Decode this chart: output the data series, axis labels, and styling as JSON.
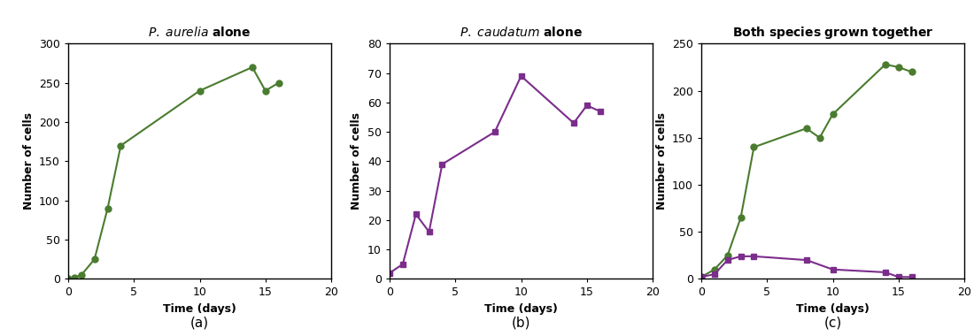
{
  "graph_a": {
    "x": [
      0,
      0.5,
      1,
      2,
      3,
      4,
      10,
      14,
      15,
      16
    ],
    "y": [
      0,
      2,
      5,
      25,
      90,
      170,
      240,
      270,
      240,
      250
    ],
    "color": "#4a7c2f",
    "marker": "o",
    "ylim": [
      0,
      300
    ],
    "yticks": [
      0,
      50,
      100,
      150,
      200,
      250,
      300
    ],
    "xlim": [
      0,
      20
    ],
    "xticks": [
      0,
      5,
      10,
      15,
      20
    ],
    "ylabel": "Number of cells",
    "xlabel": "Time (days)"
  },
  "graph_b": {
    "x": [
      0,
      1,
      2,
      3,
      4,
      8,
      10,
      14,
      15,
      16
    ],
    "y": [
      2,
      5,
      22,
      16,
      39,
      50,
      69,
      53,
      59,
      57
    ],
    "color": "#7b2d8b",
    "marker": "s",
    "ylim": [
      0,
      80
    ],
    "yticks": [
      0,
      10,
      20,
      30,
      40,
      50,
      60,
      70,
      80
    ],
    "xlim": [
      0,
      20
    ],
    "xticks": [
      0,
      5,
      10,
      15,
      20
    ],
    "ylabel": "Number of cells",
    "xlabel": "Time (days)"
  },
  "graph_c": {
    "aurelia_x": [
      0,
      1,
      2,
      3,
      4,
      8,
      9,
      10,
      14,
      15,
      16
    ],
    "aurelia_y": [
      2,
      10,
      25,
      65,
      140,
      160,
      150,
      175,
      228,
      225,
      220
    ],
    "caudatum_x": [
      0,
      1,
      2,
      3,
      4,
      8,
      10,
      14,
      15,
      16
    ],
    "caudatum_y": [
      2,
      5,
      20,
      24,
      24,
      20,
      10,
      7,
      2,
      2
    ],
    "aurelia_color": "#4a7c2f",
    "caudatum_color": "#7b2d8b",
    "aurelia_marker": "o",
    "caudatum_marker": "s",
    "ylim": [
      0,
      250
    ],
    "yticks": [
      0,
      50,
      100,
      150,
      200,
      250
    ],
    "xlim": [
      0,
      20
    ],
    "xticks": [
      0,
      5,
      10,
      15,
      20
    ],
    "ylabel": "Number of cells",
    "xlabel": "Time (days)"
  },
  "label_a": "(a)",
  "label_b": "(b)",
  "label_c": "(c)",
  "background_color": "#ffffff",
  "border_color": "#000000",
  "markersize": 5,
  "linewidth": 1.5,
  "tick_labelsize": 9,
  "axis_labelsize": 9,
  "title_fontsize": 10
}
